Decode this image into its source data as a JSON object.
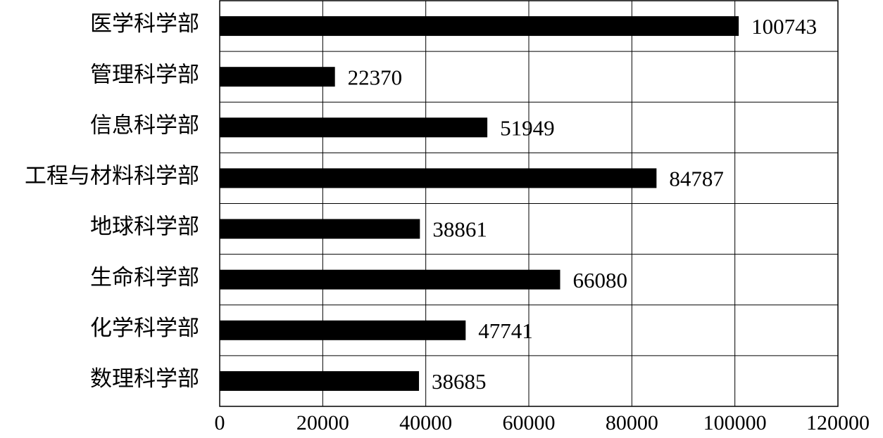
{
  "chart_data": {
    "type": "hbar",
    "categories": [
      "医学科学部",
      "管理科学部",
      "信息科学部",
      "工程与材料科学部",
      "地球科学部",
      "生命科学部",
      "化学科学部",
      "数理科学部"
    ],
    "values": [
      100743,
      22370,
      51949,
      84787,
      38861,
      66080,
      47741,
      38685
    ],
    "color": "#000000",
    "xlim": [
      0,
      120000
    ],
    "xticks": [
      0,
      20000,
      40000,
      60000,
      80000,
      100000,
      120000
    ],
    "grid": true
  }
}
